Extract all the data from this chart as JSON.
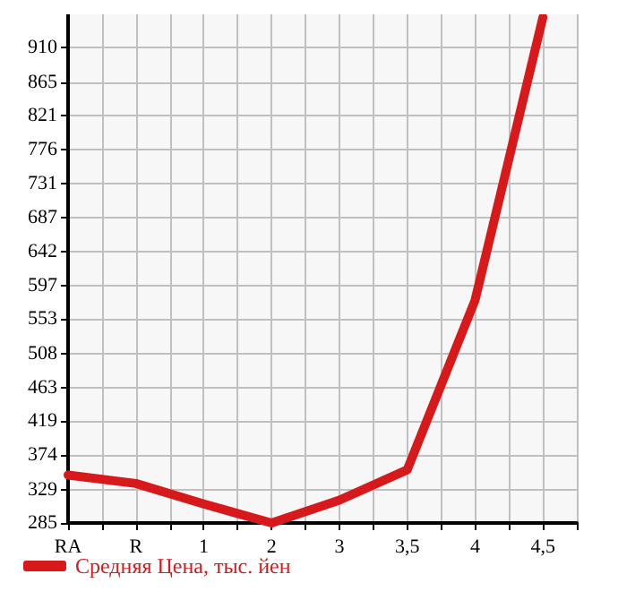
{
  "chart_data": {
    "type": "line",
    "categories": [
      "RA",
      "R",
      "1",
      "2",
      "3",
      "3,5",
      "4",
      "4,5"
    ],
    "series": [
      {
        "name": "Средняя Цена, тыс. йен",
        "color": "#d7191c",
        "values": [
          348,
          337,
          310,
          285,
          315,
          355,
          578,
          950
        ]
      }
    ],
    "ylim": [
      285,
      954
    ],
    "yticks": [
      285,
      329,
      374,
      419,
      463,
      508,
      553,
      597,
      642,
      687,
      731,
      776,
      821,
      865,
      910
    ],
    "grid": true,
    "legend": "bottom left",
    "marker": "none",
    "line_style": "solid"
  }
}
